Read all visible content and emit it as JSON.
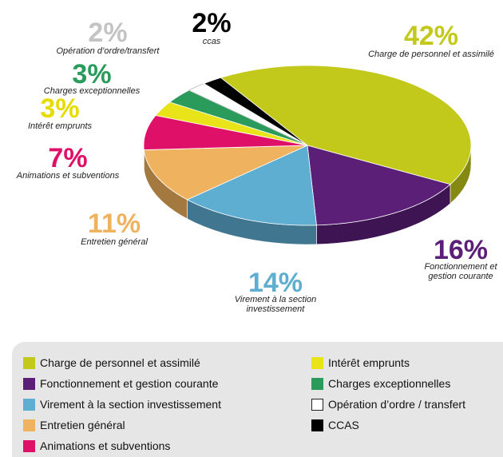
{
  "chart_data": {
    "type": "pie",
    "categories": [
      "Charge de personnel et assimilé",
      "Fonctionnement et gestion courante",
      "Virement à la section investissement",
      "Entretien général",
      "Animations et subventions",
      "Intérêt emprunts",
      "Charges exceptionnelles",
      "Opération d’ordre / transfert",
      "CCAS"
    ],
    "labels": [
      "Charge de personnel et assimilé",
      "Fonctionnement et gestion courante",
      "Virement à la section investissement",
      "Entretien général",
      "Animations et subventions",
      "Intérêt emprunts",
      "Charges exceptionnelles",
      "Opération d’ordre/transfert",
      "ccas"
    ],
    "values": [
      42,
      16,
      14,
      11,
      7,
      3,
      3,
      2,
      2
    ],
    "value_labels": [
      "42%",
      "16%",
      "14%",
      "11%",
      "7%",
      "3%",
      "3%",
      "2%",
      "2%"
    ],
    "colors": [
      "#c3c91b",
      "#5b1f78",
      "#5eaed2",
      "#efb25e",
      "#df1068",
      "#e9e41a",
      "#2b9b5c",
      "#ffffff",
      "#000000"
    ]
  }
}
